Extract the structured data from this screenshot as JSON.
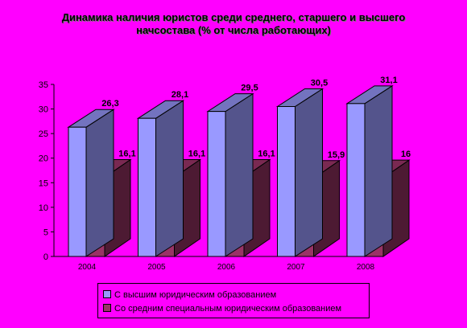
{
  "chart_data": {
    "type": "bar",
    "title": "Динамика наличия юристов среди среднего, старшего и высшего начсостава (% от числа работающих)",
    "categories": [
      "2004",
      "2005",
      "2006",
      "2007",
      "2008"
    ],
    "series": [
      {
        "name": "С высшим юридическим образованием",
        "values": [
          26.3,
          28.1,
          29.5,
          30.5,
          31.1
        ],
        "labels": [
          "26,3",
          "28,1",
          "29,5",
          "30,5",
          "31,1"
        ],
        "color": "#9999ff"
      },
      {
        "name": "Со средним специальным юридическим образованием",
        "values": [
          16.1,
          16.1,
          16.1,
          15.9,
          16
        ],
        "labels": [
          "16,1",
          "16,1",
          "16,1",
          "15,9",
          "16"
        ],
        "color": "#993366"
      }
    ],
    "ylim": [
      0,
      35
    ],
    "yticks": [
      0,
      5,
      10,
      15,
      20,
      25,
      30,
      35
    ],
    "grid": false,
    "legend_position": "bottom",
    "projection": "3d"
  }
}
